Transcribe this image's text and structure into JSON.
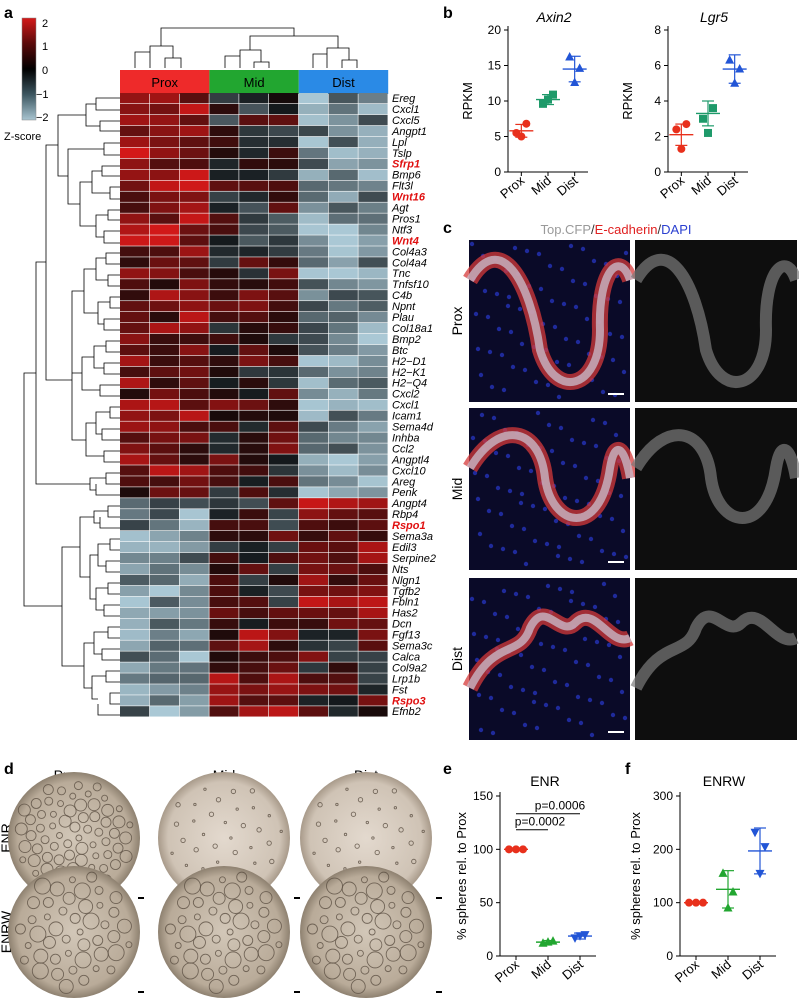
{
  "panel_letters": [
    "a",
    "b",
    "c",
    "d",
    "e",
    "f"
  ],
  "colorbar": {
    "label": "Z-score",
    "ticks": [
      "2",
      "1",
      "0",
      "−1",
      "−2"
    ],
    "colors": [
      "#d41a1a",
      "#5a0a0a",
      "#000000",
      "#3c5660",
      "#a8c4d0"
    ]
  },
  "heatmap": {
    "groups": [
      {
        "name": "Prox",
        "color": "#ee2a2a"
      },
      {
        "name": "Mid",
        "color": "#22a630"
      },
      {
        "name": "Dist",
        "color": "#2a8ae6"
      }
    ],
    "genes": [
      "Ereg",
      "Cxcl1",
      "Cxcl5",
      "Angpt1",
      "Lpl",
      "Tslp",
      "Sfrp1",
      "Bmp6",
      "Flt3l",
      "Wnt16",
      "Agt",
      "Pros1",
      "Ntf3",
      "Wnt4",
      "Col4a3",
      "Col4a4",
      "Tnc",
      "Tnfsf10",
      "C4b",
      "Npnt",
      "Plau",
      "Col18a1",
      "Bmp2",
      "Btc",
      "H2−D1",
      "H2−K1",
      "H2−Q4",
      "Cxcl2",
      "Cxcl1",
      "Icam1",
      "Sema4d",
      "Inhba",
      "Ccl2",
      "Angptl4",
      "Cxcl10",
      "Areg",
      "Penk",
      "Angpt4",
      "Rbp4",
      "Rspo1",
      "Sema3a",
      "Edil3",
      "Serpine2",
      "Nts",
      "Nlgn1",
      "Tgfb2",
      "Fbln1",
      "Has2",
      "Dcn",
      "Fgf13",
      "Sema3c",
      "Calca",
      "Col9a2",
      "Lrp1b",
      "Fst",
      "Rspo3",
      "Efnb2"
    ],
    "highlighted": [
      "Sfrp1",
      "Wnt16",
      "Wnt4",
      "Rspo1",
      "Rspo3"
    ]
  },
  "panel_b": {
    "ylabel": "RPKM",
    "charts": [
      {
        "title": "Axin2",
        "ylim": [
          0,
          20
        ],
        "yticks": [
          0,
          5,
          10,
          15,
          20
        ],
        "categories": [
          "Prox",
          "Mid",
          "Dist"
        ],
        "points": [
          [
            5.5,
            6.8,
            5.0
          ],
          [
            9.6,
            10.9,
            10.2
          ],
          [
            16.2,
            14.6,
            12.6
          ]
        ],
        "means": [
          5.8,
          10.2,
          14.5
        ],
        "sd": [
          0.9,
          0.7,
          1.8
        ]
      },
      {
        "title": "Lgr5",
        "ylim": [
          0,
          8
        ],
        "yticks": [
          0,
          2,
          4,
          6,
          8
        ],
        "categories": [
          "Prox",
          "Mid",
          "Dist"
        ],
        "points": [
          [
            2.4,
            2.7,
            1.3
          ],
          [
            3.0,
            3.6,
            2.2
          ],
          [
            6.3,
            5.8,
            5.0
          ]
        ],
        "means": [
          2.1,
          3.3,
          5.8
        ],
        "sd": [
          0.6,
          0.7,
          0.8
        ]
      }
    ]
  },
  "panel_c": {
    "title_parts": [
      "Top.CFP",
      "/",
      "E-cadherin",
      "/",
      "DAPI"
    ],
    "title_colors": [
      "#9a9a9a",
      "#333333",
      "#e02020",
      "#333333",
      "#2a3fd0"
    ],
    "rows": [
      "Prox",
      "Mid",
      "Dist"
    ]
  },
  "panel_d": {
    "columns": [
      "Prox",
      "Mid",
      "Dist"
    ],
    "rows": [
      "ENR",
      "ENRW"
    ]
  },
  "panel_e": {
    "title": "ENR",
    "ylabel": "% spheres rel. to Prox",
    "ylim": [
      0,
      150
    ],
    "yticks": [
      0,
      50,
      100,
      150
    ],
    "categories": [
      "Prox",
      "Mid",
      "Dist"
    ],
    "colors": [
      "#e8301c",
      "#22a630",
      "#2255d6"
    ],
    "points": [
      [
        100,
        100,
        100
      ],
      [
        12,
        14,
        13
      ],
      [
        17,
        20,
        19
      ]
    ],
    "means": [
      100,
      13,
      18.7
    ],
    "sd": [
      0,
      1.5,
      2.8
    ],
    "annotations": [
      "p=0.0002",
      "p=0.0006"
    ]
  },
  "panel_f": {
    "title": "ENRW",
    "ylabel": "% spheres rel. to Prox",
    "ylim": [
      0,
      300
    ],
    "yticks": [
      0,
      100,
      200,
      300
    ],
    "categories": [
      "Prox",
      "Mid",
      "Dist"
    ],
    "colors": [
      "#e8301c",
      "#22a630",
      "#2255d6"
    ],
    "points": [
      [
        100,
        100,
        100
      ],
      [
        155,
        120,
        90
      ],
      [
        232,
        205,
        155
      ]
    ],
    "means": [
      100,
      125,
      197
    ],
    "sd": [
      0,
      35,
      43
    ]
  },
  "chart_data": [
    {
      "type": "scatter",
      "title": "Axin2",
      "ylabel": "RPKM",
      "x": [
        "Prox",
        "Mid",
        "Dist"
      ],
      "ylim": [
        0,
        20
      ],
      "series": [
        {
          "values": [
            5.8,
            10.2,
            14.5
          ]
        }
      ]
    },
    {
      "type": "scatter",
      "title": "Lgr5",
      "ylabel": "RPKM",
      "x": [
        "Prox",
        "Mid",
        "Dist"
      ],
      "ylim": [
        0,
        8
      ],
      "series": [
        {
          "values": [
            2.1,
            3.3,
            5.8
          ]
        }
      ]
    },
    {
      "type": "scatter",
      "title": "ENR",
      "ylabel": "% spheres rel. to Prox",
      "x": [
        "Prox",
        "Mid",
        "Dist"
      ],
      "ylim": [
        0,
        150
      ],
      "series": [
        {
          "values": [
            100,
            13,
            18.7
          ]
        }
      ]
    },
    {
      "type": "scatter",
      "title": "ENRW",
      "ylabel": "% spheres rel. to Prox",
      "x": [
        "Prox",
        "Mid",
        "Dist"
      ],
      "ylim": [
        0,
        300
      ],
      "series": [
        {
          "values": [
            100,
            125,
            197
          ]
        }
      ]
    }
  ]
}
